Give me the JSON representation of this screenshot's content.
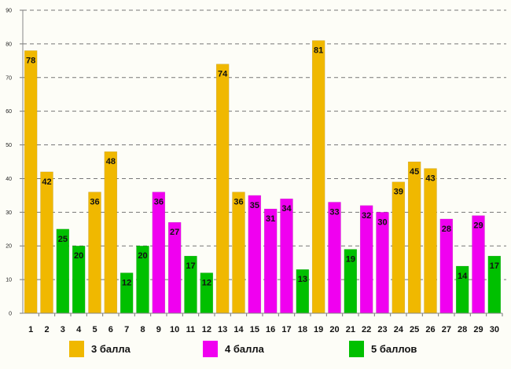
{
  "chart_data": {
    "type": "bar",
    "title": "",
    "xlabel": "",
    "ylabel": "",
    "ylim": [
      0,
      90
    ],
    "yticks": [
      0,
      10,
      20,
      30,
      40,
      50,
      60,
      70,
      80,
      90
    ],
    "grid": true,
    "legend_position": "bottom",
    "categories": [
      "1",
      "2",
      "3",
      "4",
      "5",
      "6",
      "7",
      "8",
      "9",
      "10",
      "11",
      "12",
      "13",
      "14",
      "15",
      "16",
      "17",
      "18",
      "19",
      "20",
      "21",
      "22",
      "23",
      "24",
      "25",
      "26",
      "27",
      "28",
      "29",
      "30"
    ],
    "values": [
      78,
      42,
      25,
      20,
      36,
      48,
      12,
      20,
      36,
      27,
      17,
      12,
      74,
      36,
      35,
      31,
      34,
      13,
      81,
      33,
      19,
      32,
      30,
      39,
      45,
      43,
      28,
      14,
      29,
      17
    ],
    "groups": [
      0,
      0,
      2,
      2,
      0,
      0,
      2,
      2,
      1,
      1,
      2,
      2,
      0,
      0,
      1,
      1,
      1,
      2,
      0,
      1,
      2,
      1,
      1,
      0,
      0,
      0,
      1,
      2,
      1,
      2
    ],
    "series": [
      {
        "name": "3 балла",
        "color": "#f0b800"
      },
      {
        "name": "4 балла",
        "color": "#f000f0"
      },
      {
        "name": "5 баллов",
        "color": "#00c000"
      }
    ]
  }
}
